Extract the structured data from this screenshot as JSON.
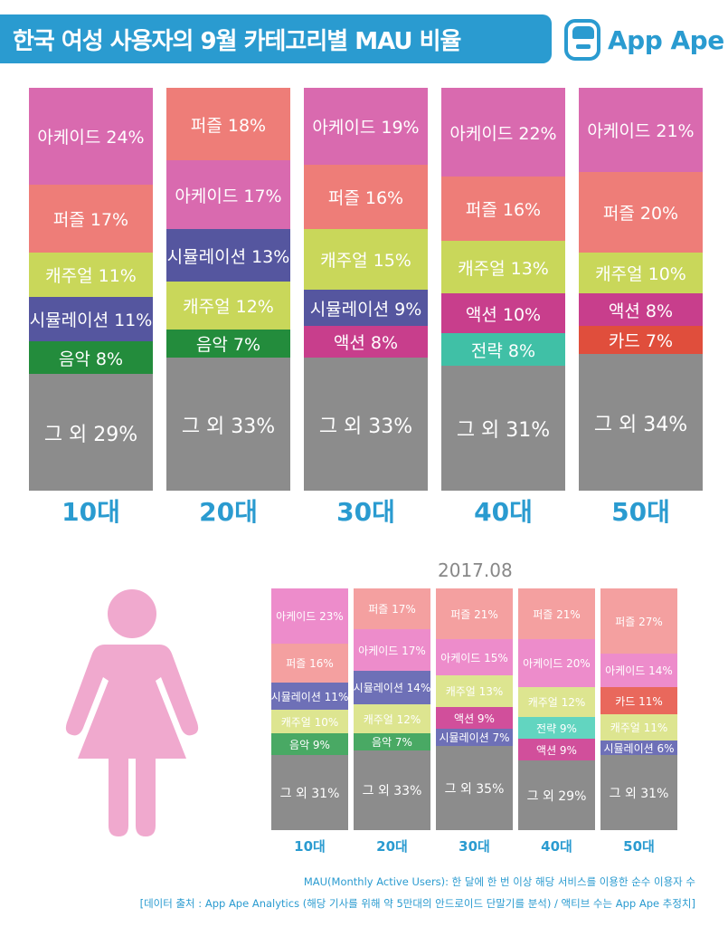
{
  "header": {
    "title": "한국 여성 사용자의 9월 카테고리별 MAU 비율",
    "brand": "App Ape"
  },
  "colors": {
    "accent": "#2a9bd0",
    "아케이드": "#d96aaf",
    "퍼즐": "#ee7d78",
    "캐주얼": "#c9d75a",
    "시뮬레이션": "#55569f",
    "음악": "#238c3c",
    "액션": "#c83e8c",
    "전략": "#40c0a6",
    "카드": "#e04e3c",
    "그 외": "#8c8c8c"
  },
  "colors_light": {
    "아케이드": "#ed8ccb",
    "퍼즐": "#f4a0a0",
    "캐주얼": "#dde590",
    "시뮬레이션": "#6e70b7",
    "음악": "#49a964",
    "액션": "#d14f9b",
    "전략": "#62d5c0",
    "카드": "#e9685c",
    "그 외": "#8c8c8c"
  },
  "chart_data": [
    {
      "type": "bar",
      "stacked": true,
      "percent": true,
      "title": "한국 여성 사용자의 9월 카테고리별 MAU 비율",
      "categories": [
        "10대",
        "20대",
        "30대",
        "40대",
        "50대"
      ],
      "stacks": [
        [
          {
            "name": "아케이드",
            "label": "아케이드 24%",
            "value": 24
          },
          {
            "name": "퍼즐",
            "label": "퍼즐 17%",
            "value": 17
          },
          {
            "name": "캐주얼",
            "label": "캐주얼 11%",
            "value": 11
          },
          {
            "name": "시뮬레이션",
            "label": "시뮬레이션 11%",
            "value": 11
          },
          {
            "name": "음악",
            "label": "음악 8%",
            "value": 8
          },
          {
            "name": "그 외",
            "label": "그 외 29%",
            "value": 29
          }
        ],
        [
          {
            "name": "퍼즐",
            "label": "퍼즐 18%",
            "value": 18
          },
          {
            "name": "아케이드",
            "label": "아케이드 17%",
            "value": 17
          },
          {
            "name": "시뮬레이션",
            "label": "시뮬레이션 13%",
            "value": 13
          },
          {
            "name": "캐주얼",
            "label": "캐주얼 12%",
            "value": 12
          },
          {
            "name": "음악",
            "label": "음악 7%",
            "value": 7
          },
          {
            "name": "그 외",
            "label": "그 외 33%",
            "value": 33
          }
        ],
        [
          {
            "name": "아케이드",
            "label": "아케이드 19%",
            "value": 19
          },
          {
            "name": "퍼즐",
            "label": "퍼즐 16%",
            "value": 16
          },
          {
            "name": "캐주얼",
            "label": "캐주얼 15%",
            "value": 15
          },
          {
            "name": "시뮬레이션",
            "label": "시뮬레이션 9%",
            "value": 9
          },
          {
            "name": "액션",
            "label": "액션 8%",
            "value": 8
          },
          {
            "name": "그 외",
            "label": "그 외 33%",
            "value": 33
          }
        ],
        [
          {
            "name": "아케이드",
            "label": "아케이드 22%",
            "value": 22
          },
          {
            "name": "퍼즐",
            "label": "퍼즐 16%",
            "value": 16
          },
          {
            "name": "캐주얼",
            "label": "캐주얼 13%",
            "value": 13
          },
          {
            "name": "액션",
            "label": "액션 10%",
            "value": 10
          },
          {
            "name": "전략",
            "label": "전략 8%",
            "value": 8
          },
          {
            "name": "그 외",
            "label": "그 외 31%",
            "value": 31
          }
        ],
        [
          {
            "name": "아케이드",
            "label": "아케이드 21%",
            "value": 21
          },
          {
            "name": "퍼즐",
            "label": "퍼즐 20%",
            "value": 20
          },
          {
            "name": "캐주얼",
            "label": "캐주얼 10%",
            "value": 10
          },
          {
            "name": "액션",
            "label": "액션 8%",
            "value": 8
          },
          {
            "name": "카드",
            "label": "카드 7%",
            "value": 7
          },
          {
            "name": "그 외",
            "label": "그 외 34%",
            "value": 34
          }
        ]
      ]
    },
    {
      "type": "bar",
      "stacked": true,
      "percent": true,
      "title": "2017.08",
      "categories": [
        "10대",
        "20대",
        "30대",
        "40대",
        "50대"
      ],
      "stacks": [
        [
          {
            "name": "아케이드",
            "label": "아케이드 23%",
            "value": 23
          },
          {
            "name": "퍼즐",
            "label": "퍼즐 16%",
            "value": 16
          },
          {
            "name": "시뮬레이션",
            "label": "시뮬레이션 11%",
            "value": 11
          },
          {
            "name": "캐주얼",
            "label": "캐주얼 10%",
            "value": 10
          },
          {
            "name": "음악",
            "label": "음악 9%",
            "value": 9
          },
          {
            "name": "그 외",
            "label": "그 외 31%",
            "value": 31
          }
        ],
        [
          {
            "name": "퍼즐",
            "label": "퍼즐 17%",
            "value": 17
          },
          {
            "name": "아케이드",
            "label": "아케이드 17%",
            "value": 17
          },
          {
            "name": "시뮬레이션",
            "label": "시뮬레이션 14%",
            "value": 14
          },
          {
            "name": "캐주얼",
            "label": "캐주얼 12%",
            "value": 12
          },
          {
            "name": "음악",
            "label": "음악 7%",
            "value": 7
          },
          {
            "name": "그 외",
            "label": "그 외 33%",
            "value": 33
          }
        ],
        [
          {
            "name": "퍼즐",
            "label": "퍼즐 21%",
            "value": 21
          },
          {
            "name": "아케이드",
            "label": "아케이드 15%",
            "value": 15
          },
          {
            "name": "캐주얼",
            "label": "캐주얼 13%",
            "value": 13
          },
          {
            "name": "액션",
            "label": "액션 9%",
            "value": 9
          },
          {
            "name": "시뮬레이션",
            "label": "시뮬레이션 7%",
            "value": 7
          },
          {
            "name": "그 외",
            "label": "그 외 35%",
            "value": 35
          }
        ],
        [
          {
            "name": "퍼즐",
            "label": "퍼즐 21%",
            "value": 21
          },
          {
            "name": "아케이드",
            "label": "아케이드 20%",
            "value": 20
          },
          {
            "name": "캐주얼",
            "label": "캐주얼 12%",
            "value": 12
          },
          {
            "name": "전략",
            "label": "전략 9%",
            "value": 9
          },
          {
            "name": "액션",
            "label": "액션 9%",
            "value": 9
          },
          {
            "name": "그 외",
            "label": "그 외 29%",
            "value": 29
          }
        ],
        [
          {
            "name": "퍼즐",
            "label": "퍼즐 27%",
            "value": 27
          },
          {
            "name": "아케이드",
            "label": "아케이드 14%",
            "value": 14
          },
          {
            "name": "카드",
            "label": "카드 11%",
            "value": 11
          },
          {
            "name": "캐주얼",
            "label": "캐주얼 11%",
            "value": 11
          },
          {
            "name": "시뮬레이션",
            "label": "시뮬레이션 6%",
            "value": 6
          },
          {
            "name": "그 외",
            "label": "그 외 31%",
            "value": 31
          }
        ]
      ]
    }
  ],
  "footer": {
    "definition": "MAU(Monthly Active Users): 한 달에 한 번 이상 해당 서비스를 이용한 순수 이용자 수",
    "source": "[데이터 출처 : App Ape Analytics (해당 기사를 위해 약 5만대의 안드로이드 단말기를 분석) / 액티브 수는 App Ape 추정치]"
  }
}
